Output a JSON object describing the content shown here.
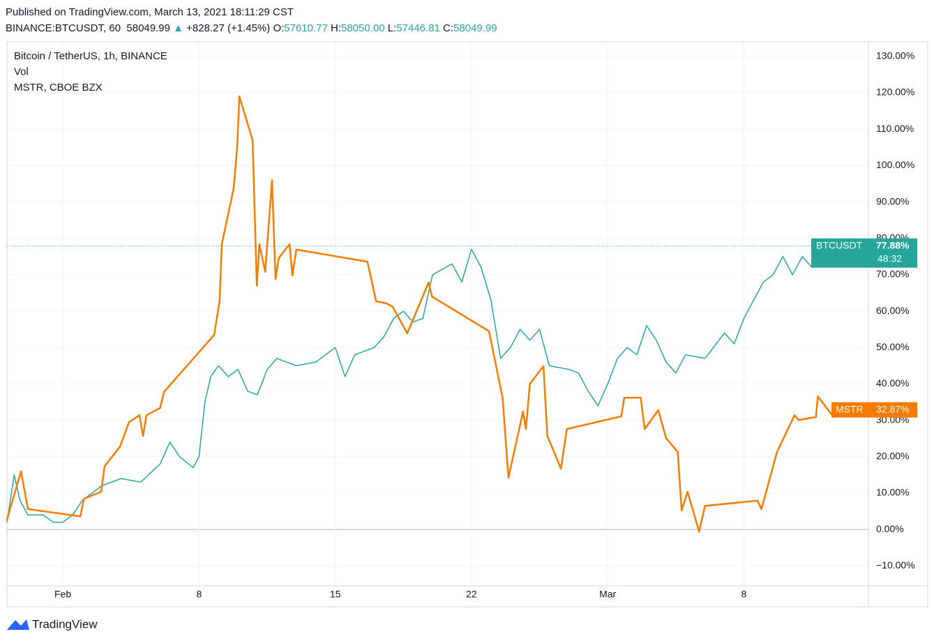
{
  "header": {
    "published": "Published on TradingView.com, March 13, 2021 18:11:29 CST",
    "symbol": "BINANCE:BTCUSDT, 60",
    "last": "58049.99",
    "arrow": "▲",
    "change": "+828.27 (+1.45%)",
    "open_label": "O:",
    "open": "57610.77",
    "high_label": "H:",
    "high": "58050.00",
    "low_label": "L:",
    "low": "57446.81",
    "close_label": "C:",
    "close": "58049.99"
  },
  "footer": {
    "brand": "TradingView"
  },
  "chart_data": {
    "type": "line",
    "legend": [
      "Bitcoin / TetherUS, 1h, BINANCE",
      "Vol",
      "MSTR, CBOE BZX"
    ],
    "xlim": [
      -1.87,
      42.4
    ],
    "xticks": [
      {
        "value": 1,
        "label": "Feb"
      },
      8,
      15,
      22,
      {
        "value": 29,
        "label": "Mar"
      },
      {
        "value": 36,
        "label": "8"
      }
    ],
    "ylim": [
      -15.5,
      134
    ],
    "yticks": [
      {
        "value": -10,
        "label": "−10.00%"
      },
      {
        "value": 0,
        "label": "0.00%"
      },
      {
        "value": 10,
        "label": "10.00%"
      },
      {
        "value": 20,
        "label": "20.00%"
      },
      {
        "value": 30,
        "label": "30.00%"
      },
      {
        "value": 40,
        "label": "40.00%"
      },
      {
        "value": 50,
        "label": "50.00%"
      },
      {
        "value": 60,
        "label": "60.00%"
      },
      {
        "value": 70,
        "label": "70.00%"
      },
      {
        "value": 80,
        "label": "80.00%"
      },
      {
        "value": 90,
        "label": "90.00%"
      },
      {
        "value": 100,
        "label": "100.00%"
      },
      {
        "value": 110,
        "label": "110.00%"
      },
      {
        "value": 120,
        "label": "120.00%"
      },
      {
        "value": 130,
        "label": "130.00%"
      }
    ],
    "grid": true,
    "series": [
      {
        "name": "BTCUSDT",
        "color": "#26a69a",
        "last_label": "77.88%",
        "countdown": "48:32",
        "x": [
          -1.87,
          -1.5,
          -1.2,
          -0.8,
          0,
          0.5,
          1,
          1.5,
          2,
          3,
          4,
          5,
          6,
          6.5,
          7,
          7.7,
          8,
          8.3,
          8.6,
          9,
          9.5,
          10,
          10.5,
          11,
          11.5,
          12,
          13,
          14,
          15,
          15.5,
          16,
          17,
          17.5,
          18,
          18.5,
          19,
          19.5,
          20,
          21,
          21.5,
          22,
          22.5,
          23,
          23.5,
          24,
          24.5,
          25,
          25.5,
          26,
          27,
          27.5,
          28,
          28.5,
          29,
          29.5,
          30,
          30.5,
          31,
          31.5,
          32,
          32.5,
          33,
          34,
          35,
          35.5,
          36,
          36.5,
          37,
          37.5,
          38,
          38.5,
          39,
          39.5,
          40,
          40.5,
          41.4
        ],
        "values": [
          2,
          15,
          8,
          4,
          4,
          2,
          2,
          4,
          8,
          12,
          14,
          13,
          18,
          24,
          20,
          17,
          20,
          35,
          42,
          45,
          42,
          44,
          38,
          37,
          44,
          47,
          45,
          46,
          50,
          42,
          48,
          50,
          53,
          58,
          60,
          57,
          58,
          70,
          73,
          68,
          77,
          72,
          63,
          47,
          50,
          55,
          52,
          55,
          45,
          44,
          43,
          38,
          34,
          40,
          47,
          50,
          48,
          56,
          52,
          46,
          43,
          48,
          47,
          54,
          51,
          58,
          63,
          68,
          70,
          75,
          70,
          75,
          72,
          73,
          74,
          77.88
        ]
      },
      {
        "name": "MSTR",
        "color": "#f57c00",
        "last_label": "32.87%",
        "x": [
          -1.87,
          -1.15,
          -0.79,
          1.9,
          2.08,
          2.97,
          3.15,
          3.94,
          4.4,
          4.94,
          5.12,
          5.3,
          6.0,
          6.2,
          8.78,
          9.06,
          9.17,
          9.78,
          9.96,
          10.07,
          10.75,
          10.97,
          11.1,
          11.4,
          11.75,
          11.93,
          12.1,
          12.65,
          12.8,
          13.0,
          16.65,
          17.1,
          17.65,
          17.95,
          18.7,
          19.8,
          19.97,
          22.9,
          23.6,
          23.9,
          24.65,
          24.8,
          25.0,
          25.7,
          25.9,
          26.6,
          26.9,
          29.7,
          29.85,
          30.7,
          30.9,
          31.6,
          32.0,
          32.6,
          32.8,
          33.1,
          33.7,
          34.0,
          36.7,
          36.9,
          37.7,
          38.6,
          38.8,
          39.7,
          39.8,
          40.6,
          41.4
        ],
        "values": [
          2.7,
          16,
          5.6,
          3.6,
          8.4,
          10.4,
          17.4,
          22.8,
          29.5,
          31.4,
          25.7,
          31.4,
          33.4,
          37.8,
          53.5,
          63,
          78.4,
          93.8,
          105,
          119,
          107,
          67,
          78.4,
          70.8,
          96,
          68.8,
          74.6,
          78.4,
          69.8,
          76.9,
          73.6,
          62.7,
          62.1,
          61.2,
          53.9,
          67.9,
          64,
          54.5,
          36.2,
          14.2,
          32.4,
          27.6,
          40,
          44.9,
          25.7,
          16.7,
          27.6,
          31.1,
          36.2,
          36.2,
          27.6,
          32.8,
          25.1,
          21.3,
          5.2,
          10.4,
          -0.6,
          6.5,
          7.9,
          5.6,
          21.3,
          31.4,
          30.1,
          30.9,
          36.6,
          30.9,
          32.87
        ]
      }
    ]
  }
}
